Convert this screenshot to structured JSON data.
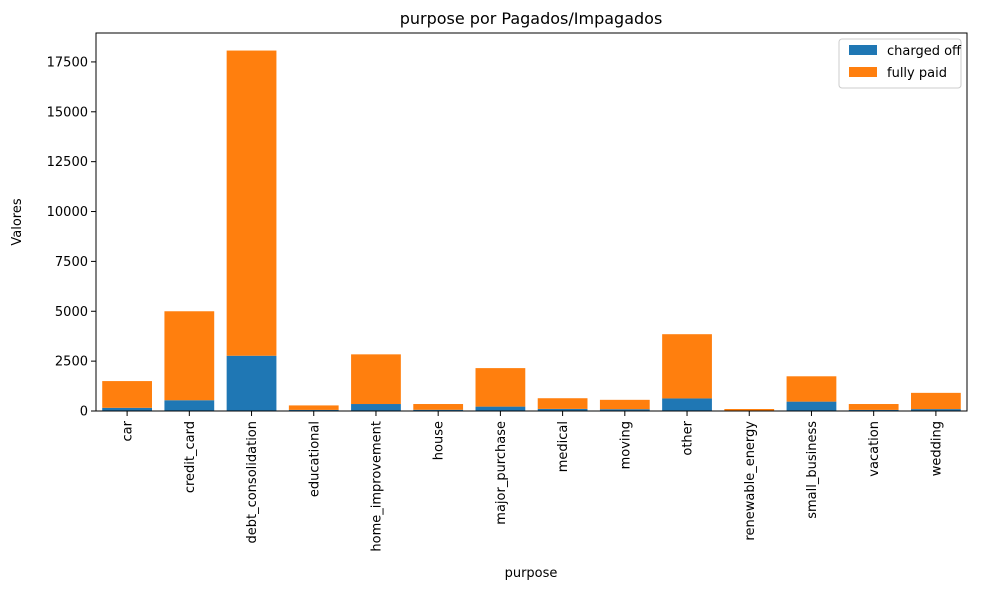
{
  "chart_data": {
    "type": "bar",
    "stacked": true,
    "title": "purpose por Pagados/Impagados",
    "xlabel": "purpose",
    "ylabel": "Valores",
    "ylim": [
      0,
      18950
    ],
    "yticks": [
      0,
      2500,
      5000,
      7500,
      10000,
      12500,
      15000,
      17500
    ],
    "legend_position": "top-right",
    "categories": [
      "car",
      "credit_card",
      "debt_consolidation",
      "educational",
      "home_improvement",
      "house",
      "major_purchase",
      "medical",
      "moving",
      "other",
      "renewable_energy",
      "small_business",
      "vacation",
      "wedding"
    ],
    "series": [
      {
        "name": "charged off",
        "color": "#1f77b4",
        "values": [
          160,
          540,
          2770,
          55,
          350,
          60,
          220,
          105,
          90,
          630,
          20,
          470,
          55,
          95
        ]
      },
      {
        "name": "fully paid",
        "color": "#ff7f0e",
        "values": [
          1340,
          4460,
          15300,
          225,
          2490,
          290,
          1930,
          535,
          470,
          3220,
          80,
          1270,
          295,
          815
        ]
      }
    ]
  }
}
